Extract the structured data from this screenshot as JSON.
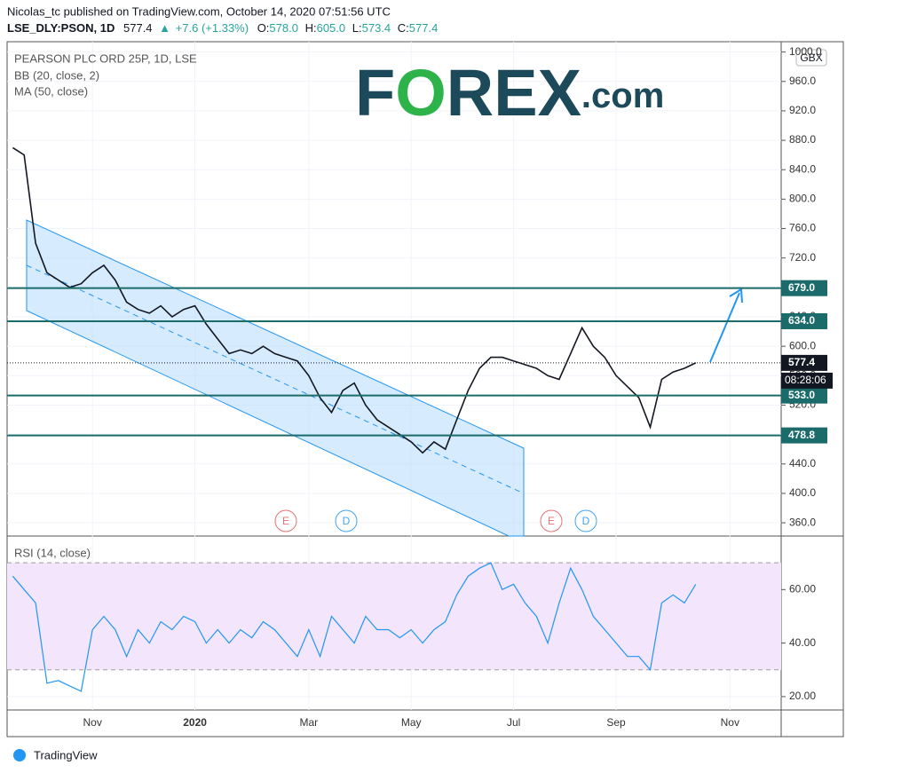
{
  "header": {
    "publisher": "Nicolas_tc published on TradingView.com, October 14, 2020 07:51:56 UTC",
    "symbol": "LSE_DLY:PSON, 1D",
    "last": "577.4",
    "arrow": "▲",
    "change": "+7.6 (+1.33%)",
    "o_label": "O:",
    "open": "578.0",
    "h_label": "H:",
    "high": "605.0",
    "l_label": "L:",
    "low": "573.4",
    "c_label": "C:",
    "close": "577.4"
  },
  "logo": {
    "f": "F",
    "o": "O",
    "rex": "REX",
    "dotcom": ".com"
  },
  "footer": "TradingView",
  "currency": "GBX",
  "chart_data": [
    {
      "type": "line",
      "title": "PEARSON PLC ORD 25P, 1D, LSE",
      "indicators": [
        "BB (20, close, 2)",
        "MA (50, close)"
      ],
      "color": "#131722",
      "categories": [
        null,
        null,
        null,
        null,
        null,
        null,
        null,
        "Nov",
        null,
        null,
        null,
        null,
        null,
        null,
        null,
        null,
        "2020",
        null,
        null,
        null,
        null,
        null,
        null,
        null,
        null,
        null,
        "Mar",
        null,
        null,
        null,
        null,
        null,
        null,
        null,
        null,
        "May",
        null,
        null,
        null,
        null,
        null,
        null,
        null,
        null,
        "Jul",
        null,
        null,
        null,
        null,
        null,
        null,
        null,
        null,
        "Sep",
        null,
        null,
        null,
        null,
        null,
        null,
        null,
        null,
        null,
        "Nov",
        null,
        null,
        null,
        null
      ],
      "values": [
        870,
        860,
        740,
        700,
        690,
        680,
        685,
        700,
        710,
        690,
        660,
        650,
        645,
        655,
        640,
        650,
        655,
        630,
        610,
        590,
        595,
        590,
        600,
        590,
        585,
        580,
        560,
        530,
        510,
        540,
        550,
        520,
        500,
        490,
        480,
        470,
        455,
        470,
        460,
        500,
        540,
        570,
        585,
        585,
        580,
        575,
        570,
        560,
        555,
        590,
        625,
        600,
        585,
        560,
        545,
        530,
        490,
        555,
        565,
        570,
        577.4,
        null,
        null,
        null,
        null,
        null,
        null,
        null
      ],
      "ylim": [
        342,
        1014
      ],
      "yticks": [
        {
          "value": 360,
          "label": "360.0"
        },
        {
          "value": 400,
          "label": "400.0"
        },
        {
          "value": 440,
          "label": "440.0"
        },
        {
          "value": 480,
          "label": "480.0"
        },
        {
          "value": 520,
          "label": "520.0"
        },
        {
          "value": 560,
          "label": "560.0"
        },
        {
          "value": 600,
          "label": "600.0"
        },
        {
          "value": 640,
          "label": "640.0"
        },
        {
          "value": 680,
          "label": "680.0"
        },
        {
          "value": 720,
          "label": "720.0"
        },
        {
          "value": 760,
          "label": "760.0"
        },
        {
          "value": 800,
          "label": "800.0"
        },
        {
          "value": 840,
          "label": "840.0"
        },
        {
          "value": 880,
          "label": "880.0"
        },
        {
          "value": 920,
          "label": "920.0"
        },
        {
          "value": 960,
          "label": "960.0"
        },
        {
          "value": 1000,
          "label": "1000.0"
        }
      ],
      "levels": [
        {
          "value": 679,
          "label": "679.0"
        },
        {
          "value": 634,
          "label": "634.0"
        },
        {
          "value": 533,
          "label": "533.0"
        },
        {
          "value": 478.8,
          "label": "478.8"
        }
      ],
      "last_price": {
        "value": 577.4,
        "label": "577.4"
      },
      "countdown": "08:28:06",
      "events": [
        "E",
        "D",
        "E",
        "D"
      ],
      "grid": true
    },
    {
      "type": "line",
      "title": "RSI (14, close)",
      "color": "#2196f3",
      "values": [
        65,
        60,
        55,
        25,
        26,
        24,
        22,
        45,
        50,
        45,
        35,
        45,
        40,
        48,
        45,
        50,
        48,
        40,
        45,
        40,
        45,
        42,
        48,
        45,
        40,
        35,
        45,
        35,
        50,
        45,
        40,
        50,
        45,
        45,
        42,
        45,
        40,
        45,
        48,
        58,
        65,
        68,
        70,
        60,
        62,
        55,
        50,
        40,
        55,
        68,
        60,
        50,
        45,
        40,
        35,
        35,
        30,
        55,
        58,
        55,
        62,
        null,
        null,
        null,
        null,
        null,
        null,
        null
      ],
      "ylim": [
        15,
        80
      ],
      "yticks": [
        {
          "value": 20,
          "label": "20.00"
        },
        {
          "value": 40,
          "label": "40.00"
        },
        {
          "value": 60,
          "label": "60.00"
        }
      ],
      "bands": [
        30,
        70
      ],
      "grid": true
    }
  ]
}
